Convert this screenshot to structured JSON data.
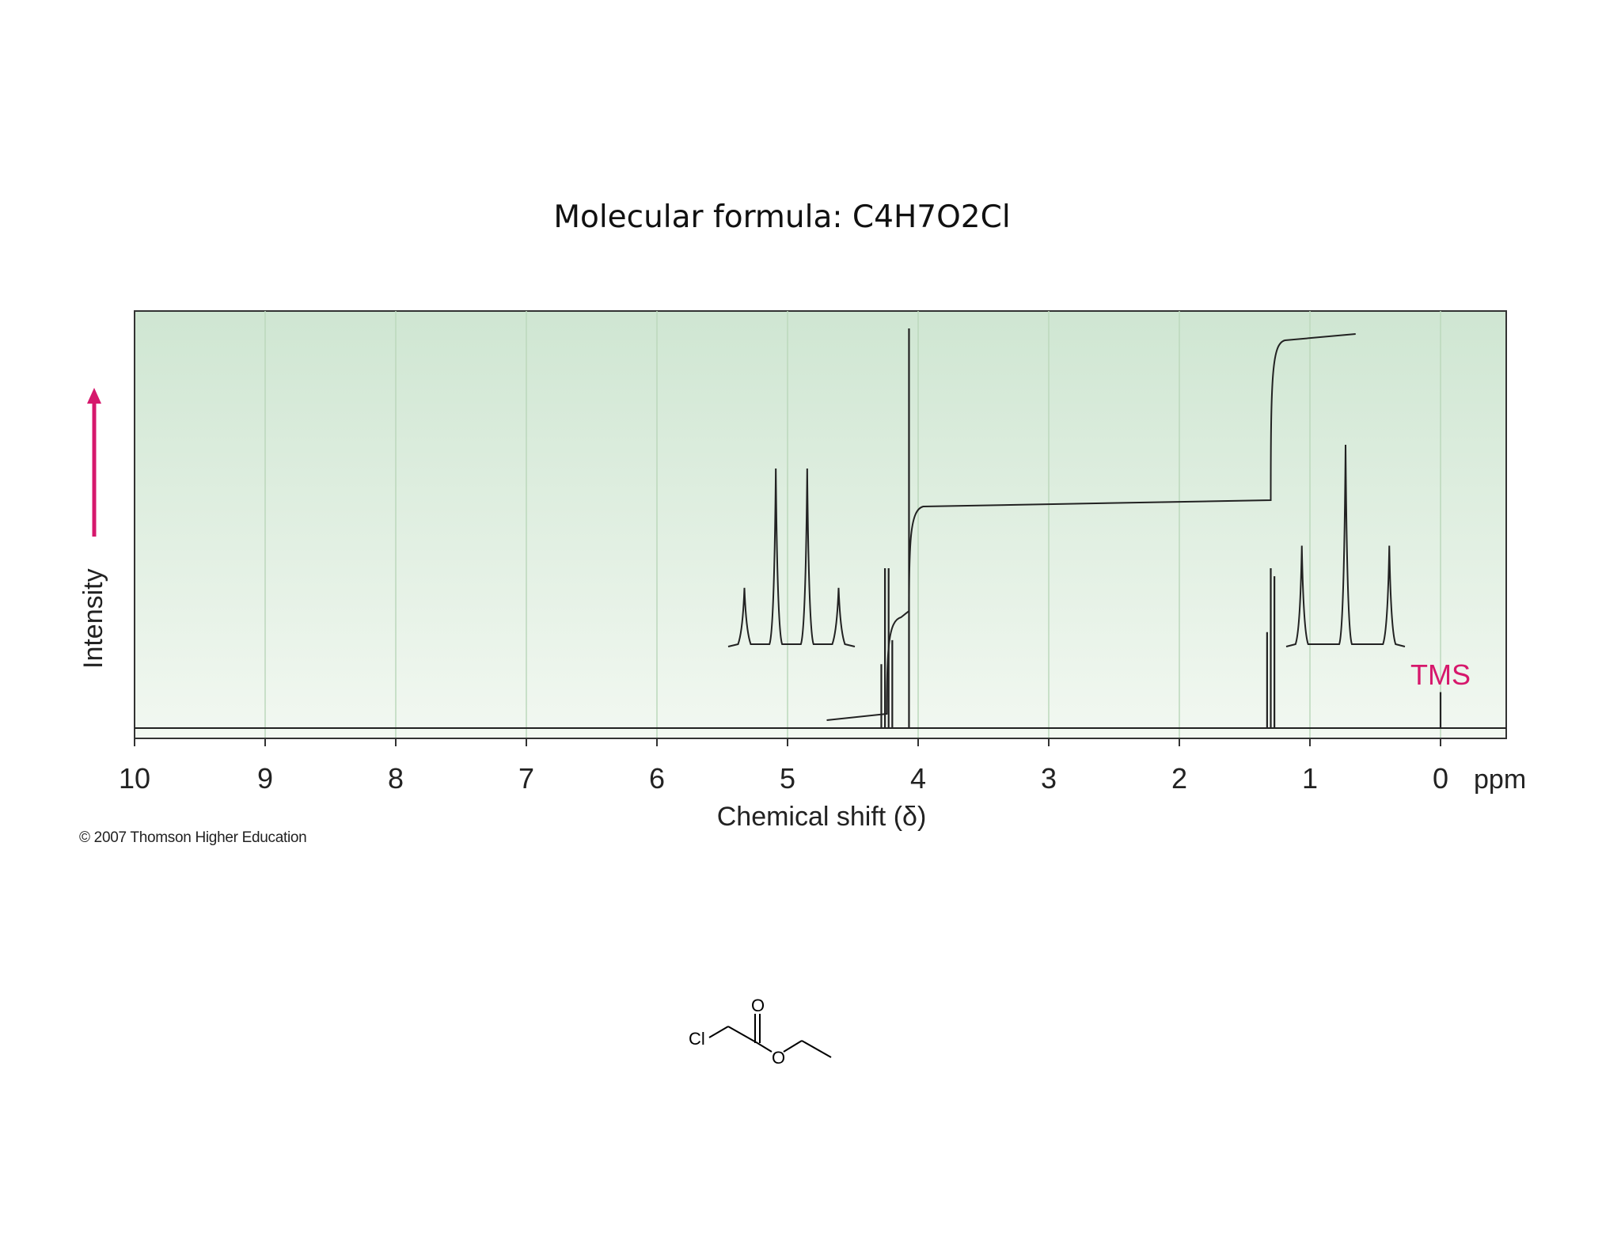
{
  "header": {
    "formula_label": "Molecular formula: C4H7O2Cl"
  },
  "chart_data": {
    "type": "line",
    "title": "",
    "xlabel": "Chemical shift (δ)",
    "x_unit": "ppm",
    "ylabel": "Intensity",
    "xlim": [
      10,
      0
    ],
    "x_reversed": true,
    "x_ticks": [
      10,
      9,
      8,
      7,
      6,
      5,
      4,
      3,
      2,
      1,
      0
    ],
    "grid": true,
    "colors": {
      "plot_background_top": "#cfe6d2",
      "plot_background_bottom": "#f2f8f1",
      "trace": "#222222",
      "accent": "#d6186c"
    },
    "peaks": [
      {
        "label": "",
        "shift": 4.07,
        "multiplicity": "singlet",
        "relative_height": 1.0
      },
      {
        "label": "",
        "shift": 4.24,
        "multiplicity": "quartet",
        "relative_height": 0.4
      },
      {
        "label": "",
        "shift": 1.3,
        "multiplicity": "triplet",
        "relative_height": 0.4
      },
      {
        "label": "TMS",
        "shift": 0.0,
        "multiplicity": "singlet",
        "relative_height": 0.09
      }
    ],
    "integration": [
      {
        "from": 4.7,
        "to": 4.24,
        "level": 0.02
      },
      {
        "from": 4.24,
        "to": 4.07,
        "level": 0.28
      },
      {
        "from": 4.07,
        "to": 1.3,
        "level": 0.56
      },
      {
        "from": 1.3,
        "to": 0.65,
        "level": 0.98
      }
    ],
    "insets": [
      {
        "for_peak": "quartet",
        "line_heights": [
          0.33,
          1.0,
          1.0,
          0.33
        ]
      },
      {
        "for_peak": "triplet",
        "line_heights": [
          0.5,
          1.0,
          0.5
        ]
      }
    ]
  },
  "footer": {
    "copyright": "© 2007 Thomson Higher Education"
  },
  "structure": {
    "atom_labels": [
      "Cl",
      "O",
      "O"
    ]
  }
}
